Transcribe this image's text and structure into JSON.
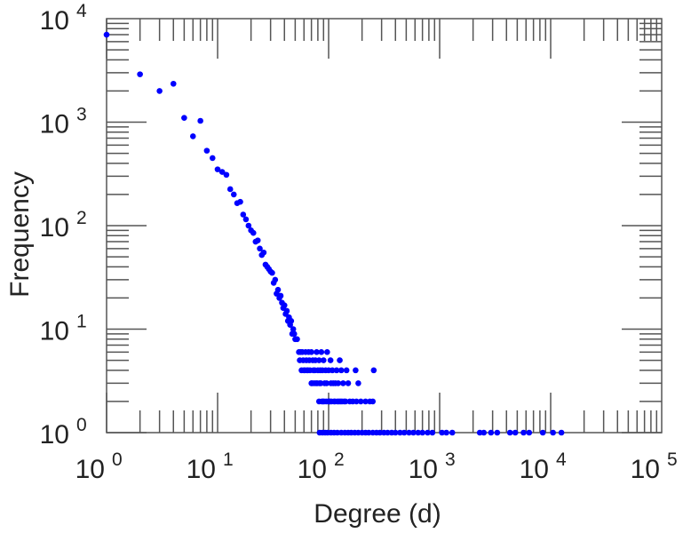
{
  "chart_data": {
    "type": "scatter",
    "xlabel": "Degree (d)",
    "ylabel": "Frequency",
    "xscale": "log",
    "yscale": "log",
    "xlim": [
      1,
      100000
    ],
    "ylim": [
      1,
      10000
    ],
    "x_ticks": [
      {
        "base": "10",
        "exp": "0"
      },
      {
        "base": "10",
        "exp": "1"
      },
      {
        "base": "10",
        "exp": "2"
      },
      {
        "base": "10",
        "exp": "3"
      },
      {
        "base": "10",
        "exp": "4"
      },
      {
        "base": "10",
        "exp": "5"
      }
    ],
    "y_ticks": [
      {
        "base": "10",
        "exp": "0"
      },
      {
        "base": "10",
        "exp": "1"
      },
      {
        "base": "10",
        "exp": "2"
      },
      {
        "base": "10",
        "exp": "3"
      },
      {
        "base": "10",
        "exp": "4"
      }
    ],
    "marker_color": "#0000ff",
    "points": [
      [
        1,
        7000
      ],
      [
        2,
        2900
      ],
      [
        3,
        2000
      ],
      [
        4,
        2350
      ],
      [
        5,
        1100
      ],
      [
        6,
        730
      ],
      [
        7,
        1030
      ],
      [
        8,
        530
      ],
      [
        9,
        450
      ],
      [
        10,
        350
      ],
      [
        11,
        330
      ],
      [
        12,
        310
      ],
      [
        13,
        225
      ],
      [
        14,
        200
      ],
      [
        15,
        165
      ],
      [
        16,
        170
      ],
      [
        17,
        128
      ],
      [
        18,
        115
      ],
      [
        19,
        100
      ],
      [
        20,
        90
      ],
      [
        21,
        85
      ],
      [
        22,
        70
      ],
      [
        23,
        72
      ],
      [
        24,
        60
      ],
      [
        25,
        52
      ],
      [
        26,
        55
      ],
      [
        27,
        42
      ],
      [
        28,
        40
      ],
      [
        29,
        38
      ],
      [
        30,
        36
      ],
      [
        31,
        35
      ],
      [
        32,
        28
      ],
      [
        33,
        30
      ],
      [
        34,
        22
      ],
      [
        35,
        24
      ],
      [
        36,
        20
      ],
      [
        37,
        21
      ],
      [
        38,
        18
      ],
      [
        39,
        16
      ],
      [
        40,
        17
      ],
      [
        41,
        14
      ],
      [
        42,
        15
      ],
      [
        43,
        12
      ],
      [
        44,
        13
      ],
      [
        45,
        11
      ],
      [
        46,
        12
      ],
      [
        47,
        9
      ],
      [
        48,
        10
      ],
      [
        49,
        9
      ],
      [
        50,
        8
      ],
      [
        52,
        8
      ],
      [
        54,
        6
      ],
      [
        56,
        6
      ],
      [
        58,
        6
      ],
      [
        62,
        6
      ],
      [
        66,
        6
      ],
      [
        70,
        6
      ],
      [
        78,
        6
      ],
      [
        86,
        6
      ],
      [
        97,
        6
      ],
      [
        55,
        5
      ],
      [
        59,
        5
      ],
      [
        63,
        5
      ],
      [
        67,
        5
      ],
      [
        72,
        5
      ],
      [
        76,
        5
      ],
      [
        82,
        5
      ],
      [
        90,
        5
      ],
      [
        104,
        5
      ],
      [
        126,
        5
      ],
      [
        57,
        4
      ],
      [
        60,
        4
      ],
      [
        61,
        4
      ],
      [
        64,
        4
      ],
      [
        65,
        4
      ],
      [
        68,
        4
      ],
      [
        73,
        4
      ],
      [
        75,
        4
      ],
      [
        80,
        4
      ],
      [
        84,
        4
      ],
      [
        88,
        4
      ],
      [
        94,
        4
      ],
      [
        100,
        4
      ],
      [
        108,
        4
      ],
      [
        118,
        4
      ],
      [
        130,
        4
      ],
      [
        145,
        4
      ],
      [
        175,
        4
      ],
      [
        255,
        4
      ],
      [
        70,
        3
      ],
      [
        71,
        3
      ],
      [
        74,
        3
      ],
      [
        77,
        3
      ],
      [
        79,
        3
      ],
      [
        83,
        3
      ],
      [
        85,
        3
      ],
      [
        92,
        3
      ],
      [
        96,
        3
      ],
      [
        105,
        3
      ],
      [
        110,
        3
      ],
      [
        115,
        3
      ],
      [
        122,
        3
      ],
      [
        135,
        3
      ],
      [
        150,
        3
      ],
      [
        185,
        3
      ],
      [
        82,
        2
      ],
      [
        87,
        2
      ],
      [
        89,
        2
      ],
      [
        91,
        2
      ],
      [
        95,
        2
      ],
      [
        99,
        2
      ],
      [
        101,
        2
      ],
      [
        103,
        2
      ],
      [
        106,
        2
      ],
      [
        112,
        2
      ],
      [
        114,
        2
      ],
      [
        120,
        2
      ],
      [
        124,
        2
      ],
      [
        128,
        2
      ],
      [
        132,
        2
      ],
      [
        138,
        2
      ],
      [
        142,
        2
      ],
      [
        155,
        2
      ],
      [
        165,
        2
      ],
      [
        178,
        2
      ],
      [
        195,
        2
      ],
      [
        215,
        2
      ],
      [
        235,
        2
      ],
      [
        250,
        2
      ],
      [
        83,
        1
      ],
      [
        88,
        1
      ],
      [
        93,
        1
      ],
      [
        98,
        1
      ],
      [
        105,
        1
      ],
      [
        112,
        1
      ],
      [
        120,
        1
      ],
      [
        130,
        1
      ],
      [
        140,
        1
      ],
      [
        150,
        1
      ],
      [
        160,
        1
      ],
      [
        172,
        1
      ],
      [
        185,
        1
      ],
      [
        200,
        1
      ],
      [
        215,
        1
      ],
      [
        230,
        1
      ],
      [
        250,
        1
      ],
      [
        270,
        1
      ],
      [
        290,
        1
      ],
      [
        315,
        1
      ],
      [
        340,
        1
      ],
      [
        370,
        1
      ],
      [
        400,
        1
      ],
      [
        440,
        1
      ],
      [
        480,
        1
      ],
      [
        530,
        1
      ],
      [
        580,
        1
      ],
      [
        640,
        1
      ],
      [
        700,
        1
      ],
      [
        780,
        1
      ],
      [
        860,
        1
      ],
      [
        1050,
        1
      ],
      [
        1150,
        1
      ],
      [
        1300,
        1
      ],
      [
        2300,
        1
      ],
      [
        2500,
        1
      ],
      [
        2900,
        1
      ],
      [
        3300,
        1
      ],
      [
        4300,
        1
      ],
      [
        4800,
        1
      ],
      [
        5700,
        1
      ],
      [
        6400,
        1
      ],
      [
        8500,
        1
      ],
      [
        10500,
        1
      ],
      [
        12500,
        1
      ]
    ]
  }
}
